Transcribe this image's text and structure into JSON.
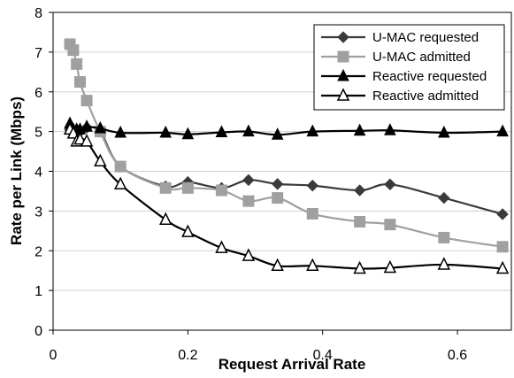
{
  "chart_data": {
    "type": "line",
    "title": "",
    "xlabel": "Request Arrival Rate",
    "ylabel": "Rate per Link (Mbps)",
    "xlim": [
      0,
      0.68
    ],
    "ylim": [
      0,
      8
    ],
    "xticks": [
      0,
      0.2,
      0.4,
      0.6
    ],
    "xtick_labels": [
      "0",
      "0.2",
      "0.4",
      "0.6"
    ],
    "yticks": [
      0,
      1,
      2,
      3,
      4,
      5,
      6,
      7,
      8
    ],
    "ytick_labels": [
      "0",
      "1",
      "2",
      "3",
      "4",
      "5",
      "6",
      "7",
      "8"
    ],
    "grid": "horizontal",
    "legend_position": "top-right",
    "series": [
      {
        "name": "U-MAC requested",
        "color": "#3a3a3a",
        "marker": "diamond",
        "x": [
          0.025,
          0.03,
          0.035,
          0.04,
          0.05,
          0.07,
          0.1,
          0.167,
          0.2,
          0.25,
          0.29,
          0.333,
          0.385,
          0.455,
          0.5,
          0.58,
          0.667
        ],
        "y": [
          5.05,
          5.0,
          5.05,
          5.0,
          5.1,
          5.0,
          4.12,
          3.62,
          3.73,
          3.58,
          3.78,
          3.68,
          3.64,
          3.52,
          3.67,
          3.33,
          2.92
        ]
      },
      {
        "name": "U-MAC admitted",
        "color": "#a0a0a0",
        "marker": "square",
        "x": [
          0.025,
          0.03,
          0.035,
          0.04,
          0.05,
          0.07,
          0.1,
          0.167,
          0.2,
          0.25,
          0.29,
          0.333,
          0.385,
          0.455,
          0.5,
          0.58,
          0.667
        ],
        "y": [
          7.2,
          7.05,
          6.7,
          6.25,
          5.78,
          5.0,
          4.12,
          3.58,
          3.58,
          3.52,
          3.25,
          3.33,
          2.93,
          2.73,
          2.66,
          2.33,
          2.1
        ]
      },
      {
        "name": "Reactive requested",
        "color": "#000000",
        "marker": "triangle-filled",
        "x": [
          0.025,
          0.03,
          0.035,
          0.04,
          0.05,
          0.07,
          0.1,
          0.167,
          0.2,
          0.25,
          0.29,
          0.333,
          0.385,
          0.455,
          0.5,
          0.58,
          0.667
        ],
        "y": [
          5.2,
          5.05,
          5.05,
          5.05,
          5.12,
          5.08,
          4.97,
          4.97,
          4.93,
          4.98,
          5.0,
          4.92,
          5.0,
          5.02,
          5.03,
          4.97,
          5.0
        ]
      },
      {
        "name": "Reactive admitted",
        "color": "#000000",
        "marker": "triangle-open",
        "x": [
          0.025,
          0.03,
          0.035,
          0.04,
          0.05,
          0.07,
          0.1,
          0.167,
          0.2,
          0.25,
          0.29,
          0.333,
          0.385,
          0.455,
          0.5,
          0.58,
          0.667
        ],
        "y": [
          5.05,
          4.95,
          4.75,
          4.8,
          4.75,
          4.25,
          3.67,
          2.78,
          2.47,
          2.07,
          1.87,
          1.62,
          1.62,
          1.55,
          1.57,
          1.65,
          1.55
        ]
      }
    ]
  }
}
